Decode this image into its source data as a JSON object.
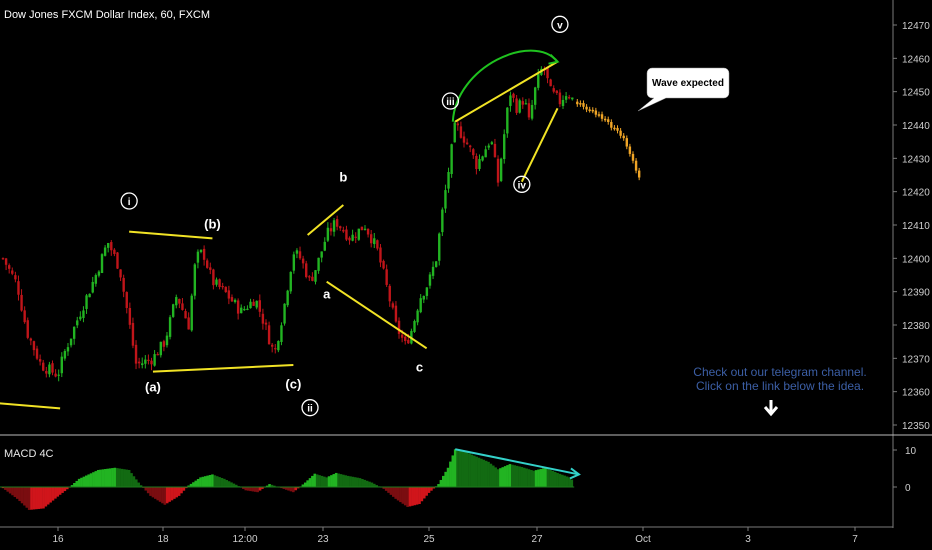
{
  "chart_title": "Dow Jones FXCM Dollar Index, 60, FXCM",
  "indicator_title": "MACD 4C",
  "note_bubble": "Wave expected",
  "telegram_line1": "Check out our telegram channel.",
  "telegram_line2": "Click on the link below the idea.",
  "colors": {
    "background": "#000000",
    "up": "#22b422",
    "down": "#c0151a",
    "projection": "#f0a526",
    "trendline": "#f1e325",
    "arc": "#1fc21f",
    "macd_arrow": "#33d1c9",
    "info_text": "#3c5fa6",
    "axis_text": "#cfcfcf"
  },
  "chart_data": {
    "type": "candlestick",
    "title": "Dow Jones FXCM Dollar Index, 60, FXCM",
    "y_ticks": [
      12350,
      12360,
      12370,
      12380,
      12390,
      12400,
      12410,
      12420,
      12430,
      12440,
      12450,
      12460,
      12470
    ],
    "ylim": [
      12345,
      12475
    ],
    "x_ticks": [
      "16",
      "18",
      "12:00",
      "23",
      "25",
      "27",
      "Oct",
      "3",
      "7"
    ],
    "price_path": [
      {
        "t": 0,
        "p": 12400
      },
      {
        "t": 0.6,
        "p": 12392
      },
      {
        "t": 1.0,
        "p": 12378
      },
      {
        "t": 1.6,
        "p": 12368
      },
      {
        "t": 2.3,
        "p": 12365
      },
      {
        "t": 2.6,
        "p": 12372
      },
      {
        "t": 3.2,
        "p": 12383
      },
      {
        "t": 3.9,
        "p": 12395
      },
      {
        "t": 4.4,
        "p": 12405
      },
      {
        "t": 4.9,
        "p": 12397
      },
      {
        "t": 5.2,
        "p": 12385
      },
      {
        "t": 5.6,
        "p": 12368
      },
      {
        "t": 6.3,
        "p": 12370
      },
      {
        "t": 6.8,
        "p": 12375
      },
      {
        "t": 7.3,
        "p": 12389
      },
      {
        "t": 7.8,
        "p": 12380
      },
      {
        "t": 8.1,
        "p": 12400
      },
      {
        "t": 8.4,
        "p": 12402
      },
      {
        "t": 8.8,
        "p": 12393
      },
      {
        "t": 9.3,
        "p": 12390
      },
      {
        "t": 10.0,
        "p": 12384
      },
      {
        "t": 10.6,
        "p": 12388
      },
      {
        "t": 11.0,
        "p": 12380
      },
      {
        "t": 11.4,
        "p": 12371
      },
      {
        "t": 11.8,
        "p": 12385
      },
      {
        "t": 12.2,
        "p": 12402
      },
      {
        "t": 12.5,
        "p": 12400
      },
      {
        "t": 12.9,
        "p": 12393
      },
      {
        "t": 13.2,
        "p": 12398
      },
      {
        "t": 13.6,
        "p": 12407
      },
      {
        "t": 14.0,
        "p": 12411
      },
      {
        "t": 14.6,
        "p": 12406
      },
      {
        "t": 15.2,
        "p": 12410
      },
      {
        "t": 15.7,
        "p": 12403
      },
      {
        "t": 16.0,
        "p": 12395
      },
      {
        "t": 16.5,
        "p": 12380
      },
      {
        "t": 16.9,
        "p": 12374
      },
      {
        "t": 17.2,
        "p": 12379
      },
      {
        "t": 17.5,
        "p": 12388
      },
      {
        "t": 17.9,
        "p": 12393
      },
      {
        "t": 18.2,
        "p": 12400
      },
      {
        "t": 18.5,
        "p": 12416
      },
      {
        "t": 18.8,
        "p": 12430
      },
      {
        "t": 19.0,
        "p": 12440
      },
      {
        "t": 19.3,
        "p": 12437
      },
      {
        "t": 19.6,
        "p": 12433
      },
      {
        "t": 19.9,
        "p": 12428
      },
      {
        "t": 20.2,
        "p": 12432
      },
      {
        "t": 20.5,
        "p": 12436
      },
      {
        "t": 20.8,
        "p": 12423
      },
      {
        "t": 21.0,
        "p": 12434
      },
      {
        "t": 21.3,
        "p": 12450
      },
      {
        "t": 21.6,
        "p": 12445
      },
      {
        "t": 21.9,
        "p": 12448
      },
      {
        "t": 22.1,
        "p": 12441
      },
      {
        "t": 22.4,
        "p": 12452
      },
      {
        "t": 22.7,
        "p": 12458
      },
      {
        "t": 23.0,
        "p": 12450
      },
      {
        "t": 23.4,
        "p": 12447
      },
      {
        "t": 23.7,
        "p": 12450
      },
      {
        "t": 24.0,
        "p": 12447
      }
    ],
    "projection_path": [
      {
        "t": 24.0,
        "p": 12447
      },
      {
        "t": 24.8,
        "p": 12444
      },
      {
        "t": 25.5,
        "p": 12440
      },
      {
        "t": 26.0,
        "p": 12437
      },
      {
        "t": 26.4,
        "p": 12430
      },
      {
        "t": 26.8,
        "p": 12423
      }
    ],
    "wave_labels": [
      {
        "text": "i",
        "t": 5.3,
        "p": 12416,
        "circled": true
      },
      {
        "text": "(b)",
        "t": 8.8,
        "p": 12409,
        "circled": false
      },
      {
        "text": "(a)",
        "t": 6.3,
        "p": 12360,
        "circled": false
      },
      {
        "text": "(c)",
        "t": 12.2,
        "p": 12361,
        "circled": false
      },
      {
        "text": "ii",
        "t": 12.9,
        "p": 12354,
        "circled": true
      },
      {
        "text": "b",
        "t": 14.3,
        "p": 12423,
        "circled": false
      },
      {
        "text": "a",
        "t": 13.6,
        "p": 12388,
        "circled": false
      },
      {
        "text": "c",
        "t": 17.5,
        "p": 12366,
        "circled": false
      },
      {
        "text": "iii",
        "t": 18.8,
        "p": 12446,
        "circled": true
      },
      {
        "text": "iv",
        "t": 21.8,
        "p": 12421,
        "circled": true
      },
      {
        "text": "v",
        "t": 23.4,
        "p": 12469,
        "circled": true
      }
    ],
    "trendlines": [
      {
        "t1": -1,
        "p1": 12357,
        "t2": 2.4,
        "p2": 12355
      },
      {
        "t1": 5.3,
        "p1": 12408,
        "t2": 8.8,
        "p2": 12406
      },
      {
        "t1": 6.3,
        "p1": 12366,
        "t2": 12.2,
        "p2": 12368
      },
      {
        "t1": 12.8,
        "p1": 12407,
        "t2": 14.3,
        "p2": 12416
      },
      {
        "t1": 13.6,
        "p1": 12393,
        "t2": 17.8,
        "p2": 12373
      },
      {
        "t1": 19.0,
        "p1": 12441,
        "t2": 23.3,
        "p2": 12459
      },
      {
        "t1": 21.8,
        "p1": 12423,
        "t2": 23.3,
        "p2": 12445
      }
    ],
    "macd": {
      "title": "MACD 4C",
      "y_ticks": [
        10,
        0
      ],
      "ylim": [
        -7,
        11
      ],
      "histogram": [
        {
          "t": 0,
          "v": -0.3
        },
        {
          "t": 0.6,
          "v": -3.2
        },
        {
          "t": 1.1,
          "v": -6.2
        },
        {
          "t": 1.7,
          "v": -5.8
        },
        {
          "t": 2.3,
          "v": -2.6
        },
        {
          "t": 2.7,
          "v": -0.6
        },
        {
          "t": 3.2,
          "v": 2.2
        },
        {
          "t": 4.0,
          "v": 4.6
        },
        {
          "t": 4.7,
          "v": 5.2
        },
        {
          "t": 5.3,
          "v": 4.6
        },
        {
          "t": 5.7,
          "v": 1.2
        },
        {
          "t": 6.2,
          "v": -2.4
        },
        {
          "t": 6.8,
          "v": -4.8
        },
        {
          "t": 7.4,
          "v": -2.4
        },
        {
          "t": 7.8,
          "v": 0.4
        },
        {
          "t": 8.3,
          "v": 2.6
        },
        {
          "t": 8.8,
          "v": 3.4
        },
        {
          "t": 9.3,
          "v": 2.2
        },
        {
          "t": 9.8,
          "v": 0.6
        },
        {
          "t": 10.2,
          "v": -0.9
        },
        {
          "t": 10.7,
          "v": -1.4
        },
        {
          "t": 11.2,
          "v": 0.8
        },
        {
          "t": 11.7,
          "v": -0.3
        },
        {
          "t": 12.2,
          "v": -1.4
        },
        {
          "t": 12.7,
          "v": 1.2
        },
        {
          "t": 13.1,
          "v": 3.6
        },
        {
          "t": 13.6,
          "v": 2.6
        },
        {
          "t": 14.0,
          "v": 3.8
        },
        {
          "t": 14.5,
          "v": 3.0
        },
        {
          "t": 15.0,
          "v": 2.4
        },
        {
          "t": 15.5,
          "v": 1.2
        },
        {
          "t": 16.0,
          "v": -0.5
        },
        {
          "t": 16.5,
          "v": -3.2
        },
        {
          "t": 17.0,
          "v": -5.4
        },
        {
          "t": 17.5,
          "v": -4.6
        },
        {
          "t": 17.9,
          "v": -1.6
        },
        {
          "t": 18.3,
          "v": 0.8
        },
        {
          "t": 18.7,
          "v": 5.2
        },
        {
          "t": 19.0,
          "v": 10.2
        },
        {
          "t": 19.4,
          "v": 9.6
        },
        {
          "t": 19.9,
          "v": 8.2
        },
        {
          "t": 20.4,
          "v": 6.8
        },
        {
          "t": 20.8,
          "v": 4.8
        },
        {
          "t": 21.3,
          "v": 6.2
        },
        {
          "t": 21.8,
          "v": 5.4
        },
        {
          "t": 22.3,
          "v": 4.4
        },
        {
          "t": 22.8,
          "v": 5.2
        },
        {
          "t": 23.3,
          "v": 3.8
        },
        {
          "t": 23.8,
          "v": 2.6
        },
        {
          "t": 24.0,
          "v": 1.4
        }
      ]
    }
  }
}
